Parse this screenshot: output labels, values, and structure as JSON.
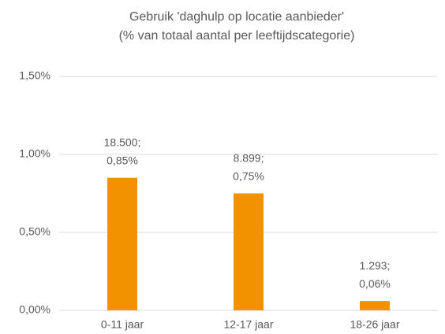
{
  "chart_data": {
    "type": "bar",
    "title": "Gebruik 'daghulp op locatie aanbieder'",
    "subtitle": "(% van totaal aantal per leeftijdscategorie)",
    "categories": [
      "0-11 jaar",
      "12-17 jaar",
      "18-26 jaar"
    ],
    "values": [
      0.85,
      0.75,
      0.06
    ],
    "value_labels": [
      "18.500;\n0,85%",
      "8.899;\n0,75%",
      "1.293;\n0,06%"
    ],
    "color": "#f39200",
    "ylim": [
      0,
      1.5
    ],
    "yticks": [
      {
        "value": 0,
        "label": "0,00%"
      },
      {
        "value": 0.5,
        "label": "0,50%"
      },
      {
        "value": 1,
        "label": "1,00%"
      },
      {
        "value": 1.5,
        "label": "1,50%"
      }
    ],
    "grid": true
  }
}
